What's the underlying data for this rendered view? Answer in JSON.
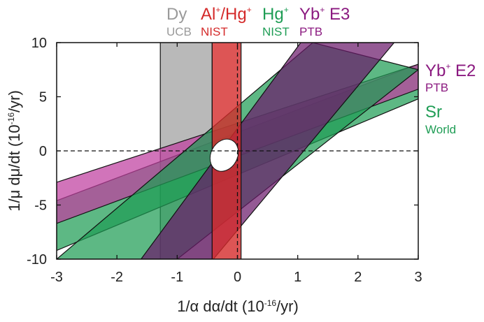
{
  "chart_data": {
    "type": "area",
    "xlabel": "1/α dα/dt (10",
    "xlabel_exp": "-16",
    "xlabel_tail": "/yr)",
    "ylabel": "1/μ dμ/dt (10",
    "ylabel_exp": "-16",
    "ylabel_tail": "/yr)",
    "xlim": [
      -3,
      3
    ],
    "ylim": [
      -10,
      10
    ],
    "xticks": [
      -3,
      -2,
      -1,
      0,
      1,
      2,
      3
    ],
    "yticks": [
      10,
      5,
      0,
      -5,
      -10
    ],
    "zero_lines": "dashed",
    "combined_constraint": {
      "x": -0.22,
      "y": -0.4,
      "rx": 0.22,
      "ry": 1.55
    },
    "series": [
      {
        "name": "Dy",
        "source": "UCB",
        "color": "#a8a8a8",
        "kind": "vertical",
        "x_range": [
          -1.28,
          -0.42
        ]
      },
      {
        "name": "Sr",
        "source": "World",
        "color": "#1f9d55",
        "kind": "band",
        "lower": [
          [
            -3.0,
            -9.2
          ],
          [
            3.0,
            4.8
          ]
        ],
        "upper": [
          [
            -3.0,
            -4.6
          ],
          [
            3.0,
            8.0
          ]
        ]
      },
      {
        "name": "Yb+ E2",
        "source": "PTB",
        "color": "#bf3fa0",
        "kind": "band",
        "lower": [
          [
            -3.0,
            -6.7
          ],
          [
            3.0,
            5.7
          ]
        ],
        "upper": [
          [
            -3.0,
            -2.9
          ],
          [
            3.0,
            8.0
          ]
        ]
      },
      {
        "name": "Hg+",
        "source": "NIST",
        "color": "#1f9d55",
        "kind": "band",
        "lower": [
          [
            -1.0,
            -10.0
          ],
          [
            3.0,
            7.5
          ]
        ],
        "upper": [
          [
            -3.0,
            -10.0
          ],
          [
            1.25,
            10.0
          ]
        ]
      },
      {
        "name": "Yb+ E3",
        "source": "PTB",
        "color": "#6b1a6b",
        "kind": "band",
        "lower": [
          [
            -0.4,
            -10.0
          ],
          [
            2.6,
            10.0
          ]
        ],
        "upper": [
          [
            -1.6,
            -10.0
          ],
          [
            1.05,
            10.0
          ]
        ]
      },
      {
        "name": "Al+/Hg+",
        "source": "NIST",
        "color": "#d42a2a",
        "kind": "vertical",
        "x_range": [
          -0.42,
          0.06
        ]
      }
    ]
  },
  "legend_top": [
    {
      "main": "Dy",
      "sup": "",
      "tail": "",
      "sub": "UCB",
      "color": "#9a9a9a"
    },
    {
      "main": "Al",
      "sup": "+",
      "tail": "/Hg",
      "sup2": "+",
      "sub": "NIST",
      "color": "#d42a2a"
    },
    {
      "main": "Hg",
      "sup": "+",
      "tail": "",
      "sub": "NIST",
      "color": "#1f9d55"
    },
    {
      "main": "Yb",
      "sup": "+",
      "tail": " E3",
      "sub": "PTB",
      "color": "#8b1a80"
    }
  ],
  "legend_right": [
    {
      "main": "Yb",
      "sup": "+",
      "tail": " E2",
      "sub": "PTB",
      "color": "#8b1a80"
    },
    {
      "main": "Sr",
      "sup": "",
      "tail": "",
      "sub": "World",
      "color": "#1f9d55"
    }
  ]
}
